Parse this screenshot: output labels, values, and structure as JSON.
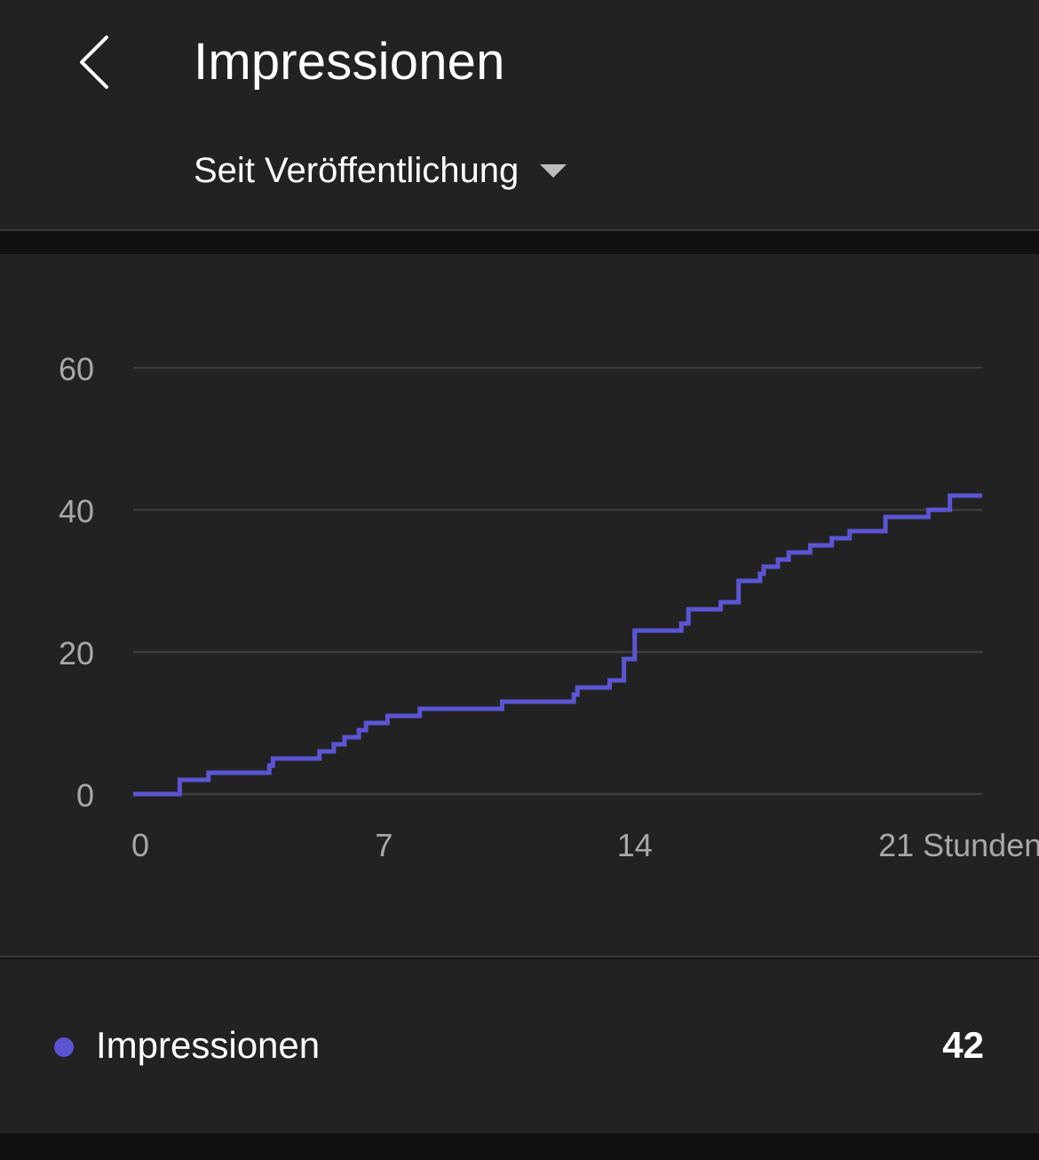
{
  "header": {
    "title": "Impressionen",
    "back_icon": "chevron-left-icon",
    "range_label": "Seit Veröffentlichung",
    "range_icon": "caret-down-icon"
  },
  "chart_data": {
    "type": "line",
    "step": true,
    "x_tick_labels": [
      "0",
      "7",
      "14",
      "21 Stunden"
    ],
    "x_ticks": [
      0,
      7,
      14,
      21
    ],
    "y_ticks": [
      0,
      20,
      40,
      60
    ],
    "ylim": [
      0,
      60
    ],
    "xlim": [
      0,
      23.7
    ],
    "grid": true,
    "series": [
      {
        "name": "Impressionen",
        "color": "#5b55d4",
        "x": [
          0,
          1.3,
          2.1,
          3.8,
          3.9,
          5.2,
          5.6,
          5.9,
          6.3,
          6.5,
          7.1,
          8.0,
          10.3,
          12.3,
          12.4,
          13.3,
          13.7,
          14.0,
          14.3,
          15.3,
          15.5,
          16.4,
          16.9,
          17.5,
          17.6,
          18.0,
          18.3,
          18.9,
          19.5,
          20.0,
          21.0,
          22.2,
          22.8,
          23.0
        ],
        "y": [
          0,
          2,
          3,
          4,
          5,
          6,
          7,
          8,
          9,
          10,
          11,
          12,
          13,
          14,
          15,
          16,
          19,
          23,
          23,
          24,
          26,
          27,
          30,
          31,
          32,
          33,
          34,
          35,
          36,
          37,
          39,
          40,
          42,
          42
        ]
      }
    ]
  },
  "legend": {
    "label": "Impressionen",
    "value": "42",
    "color": "#5b55d4"
  }
}
